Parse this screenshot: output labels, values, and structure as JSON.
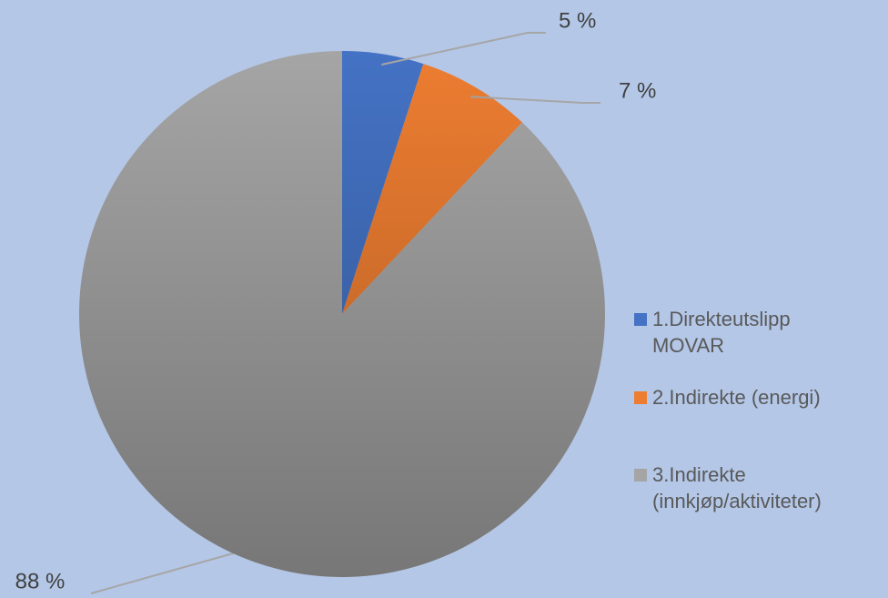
{
  "chart_data": {
    "type": "pie",
    "categories": [
      "1.Direkteutslipp MOVAR",
      "2.Indirekte (energi)",
      "3.Indirekte (innkjøp/aktiviteter)"
    ],
    "values": [
      5,
      7,
      88
    ],
    "value_labels": [
      "5 %",
      "7 %",
      "88 %"
    ],
    "colors": [
      "#4472c4",
      "#ed7d31",
      "#a5a5a5"
    ],
    "legend": "right"
  }
}
